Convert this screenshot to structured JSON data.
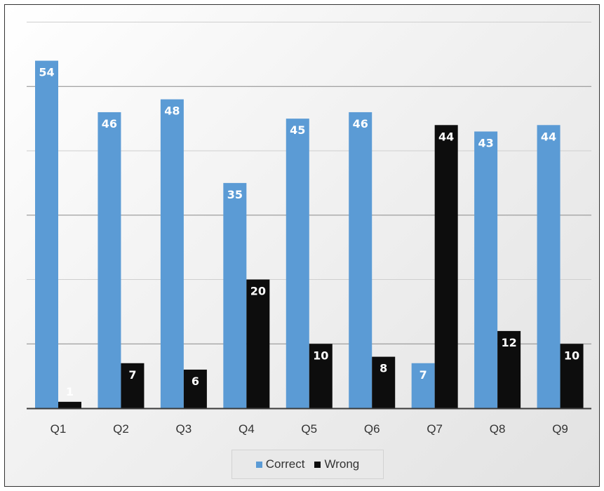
{
  "chart_data": {
    "type": "bar",
    "title": "",
    "xlabel": "",
    "ylabel": "",
    "categories": [
      "Q1",
      "Q2",
      "Q3",
      "Q4",
      "Q5",
      "Q6",
      "Q7",
      "Q8",
      "Q9"
    ],
    "series": [
      {
        "name": "Correct",
        "color": "#5b9bd5",
        "values": [
          54,
          46,
          48,
          35,
          45,
          46,
          7,
          43,
          44
        ]
      },
      {
        "name": "Wrong",
        "color": "#0d0d0d",
        "values": [
          1,
          7,
          6,
          20,
          10,
          8,
          44,
          12,
          10
        ]
      }
    ],
    "ylim": [
      0,
      60
    ],
    "y_gridline_step": 10,
    "y_tick_labels_shown": false,
    "grid": true,
    "data_labels": true,
    "legend_position": "bottom"
  }
}
